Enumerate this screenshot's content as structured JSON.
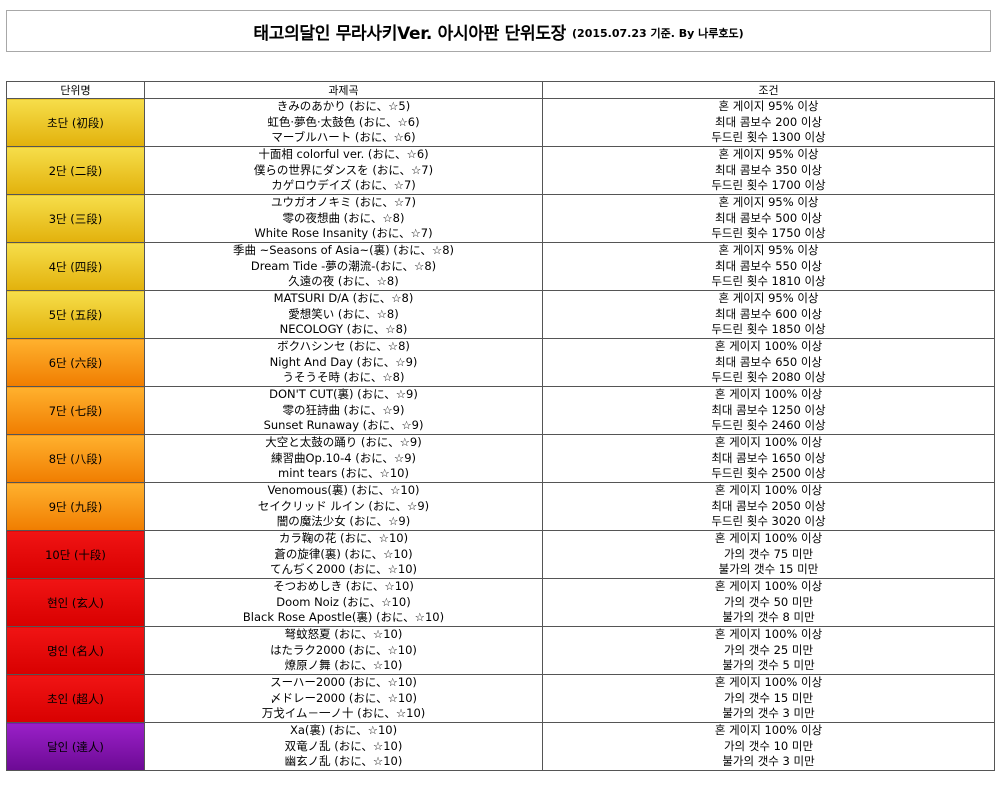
{
  "header": {
    "title": "태고의달인 무라사키Ver. 아시아판 단위도장",
    "subtitle": "(2015.07.23 기준. By 나루호도)"
  },
  "table": {
    "columns": [
      "단위명",
      "과제곡",
      "조건"
    ],
    "rows": [
      {
        "rank": "초단 (初段)",
        "tier": "gold",
        "songs": [
          "きみのあかり (おに、☆5)",
          "虹色·夢色·太鼓色 (おに、☆6)",
          "マーブルハート (おに、☆6)"
        ],
        "conditions": [
          "혼 게이지 95% 이상",
          "최대 콤보수 200 이상",
          "두드린 횟수 1300 이상"
        ]
      },
      {
        "rank": "2단 (二段)",
        "tier": "gold",
        "songs": [
          "十面相 colorful ver. (おに、☆6)",
          "僕らの世界にダンスを (おに、☆7)",
          "カゲロウデイズ (おに、☆7)"
        ],
        "conditions": [
          "혼 게이지 95% 이상",
          "최대 콤보수 350 이상",
          "두드린 횟수 1700 이상"
        ]
      },
      {
        "rank": "3단 (三段)",
        "tier": "gold",
        "songs": [
          "ユウガオノキミ (おに、☆7)",
          "零の夜想曲 (おに、☆8)",
          "White Rose Insanity (おに、☆7)"
        ],
        "conditions": [
          "혼 게이지 95% 이상",
          "최대 콤보수 500 이상",
          "두드린 횟수 1750 이상"
        ]
      },
      {
        "rank": "4단 (四段)",
        "tier": "gold",
        "songs": [
          "季曲 ~Seasons of Asia~(裏) (おに、☆8)",
          "Dream Tide -夢の潮流-(おに、☆8)",
          "久遠の夜 (おに、☆8)"
        ],
        "conditions": [
          "혼 게이지 95% 이상",
          "최대 콤보수 550 이상",
          "두드린 횟수 1810 이상"
        ]
      },
      {
        "rank": "5단 (五段)",
        "tier": "gold",
        "songs": [
          "MATSURI D/A (おに、☆8)",
          "愛想笑い (おに、☆8)",
          "NECOLOGY (おに、☆8)"
        ],
        "conditions": [
          "혼 게이지 95% 이상",
          "최대 콤보수 600 이상",
          "두드린 횟수 1850 이상"
        ]
      },
      {
        "rank": "6단 (六段)",
        "tier": "orange",
        "songs": [
          "ボクハシンセ (おに、☆8)",
          "Night And Day (おに、☆9)",
          "うそうそ時 (おに、☆8)"
        ],
        "conditions": [
          "혼 게이지 100% 이상",
          "최대 콤보수 650 이상",
          "두드린 횟수 2080 이상"
        ]
      },
      {
        "rank": "7단 (七段)",
        "tier": "orange",
        "songs": [
          "DON'T CUT(裏) (おに、☆9)",
          "零の狂詩曲 (おに、☆9)",
          "Sunset Runaway (おに、☆9)"
        ],
        "conditions": [
          "혼 게이지 100% 이상",
          "최대 콤보수 1250 이상",
          "두드린 횟수 2460 이상"
        ]
      },
      {
        "rank": "8단 (八段)",
        "tier": "orange",
        "songs": [
          "大空と太鼓の踊り (おに、☆9)",
          "練習曲Op.10-4 (おに、☆9)",
          "mint tears (おに、☆10)"
        ],
        "conditions": [
          "혼 게이지 100% 이상",
          "최대 콤보수 1650 이상",
          "두드린 횟수 2500 이상"
        ]
      },
      {
        "rank": "9단 (九段)",
        "tier": "orange",
        "songs": [
          "Venomous(裏) (おに、☆10)",
          "セイクリッド ルイン (おに、☆9)",
          "闇の魔法少女 (おに、☆9)"
        ],
        "conditions": [
          "혼 게이지 100% 이상",
          "최대 콤보수 2050 이상",
          "두드린 횟수 3020 이상"
        ]
      },
      {
        "rank": "10단 (十段)",
        "tier": "red",
        "songs": [
          "カラ鞠の花 (おに、☆10)",
          "蒼の旋律(裏) (おに、☆10)",
          "てんぢく2000 (おに、☆10)"
        ],
        "conditions": [
          "혼 게이지 100% 이상",
          "가의 갯수 75 미만",
          "불가의 갯수 15 미만"
        ]
      },
      {
        "rank": "현인 (玄人)",
        "tier": "red",
        "songs": [
          "そつおめしき (おに、☆10)",
          "Doom Noiz (おに、☆10)",
          "Black Rose Apostle(裏) (おに、☆10)"
        ],
        "conditions": [
          "혼 게이지 100% 이상",
          "가의 갯수 50 미만",
          "불가의 갯수 8 미만"
        ]
      },
      {
        "rank": "명인 (名人)",
        "tier": "red",
        "songs": [
          "弩蚊怒夏 (おに、☆10)",
          "はたラク2000 (おに、☆10)",
          "燎原ノ舞 (おに、☆10)"
        ],
        "conditions": [
          "혼 게이지 100% 이상",
          "가의 갯수 25 미만",
          "불가의 갯수 5 미만"
        ]
      },
      {
        "rank": "초인 (超人)",
        "tier": "red",
        "songs": [
          "スーハー2000 (おに、☆10)",
          "〆ドレー2000 (おに、☆10)",
          "万戈イム－一ノ十 (おに、☆10)"
        ],
        "conditions": [
          "혼 게이지 100% 이상",
          "가의 갯수 15 미만",
          "불가의 갯수 3 미만"
        ]
      },
      {
        "rank": "달인 (達人)",
        "tier": "purple",
        "songs": [
          "Xa(裏) (おに、☆10)",
          "双竜ノ乱 (おに、☆10)",
          "幽玄ノ乱 (おに、☆10)"
        ],
        "conditions": [
          "혼 게이지 100% 이상",
          "가의 갯수 10 미만",
          "불가의 갯수 3 미만"
        ]
      }
    ]
  }
}
